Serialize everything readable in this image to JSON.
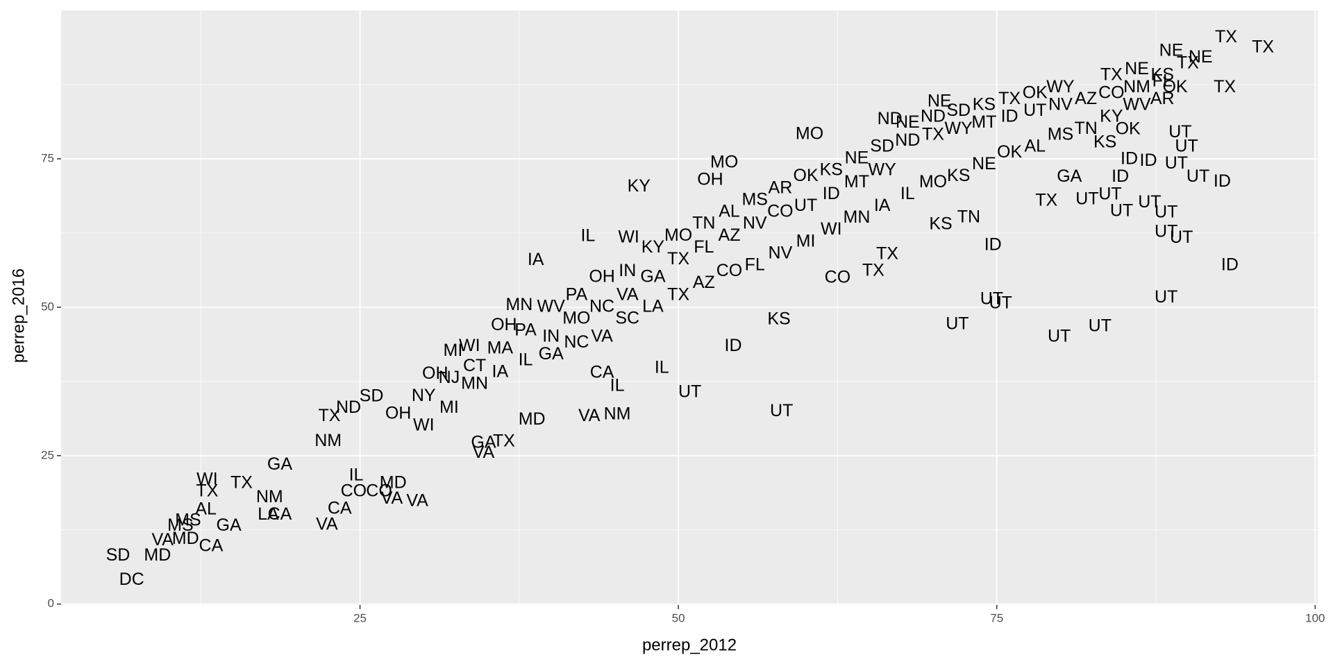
{
  "chart_data": {
    "type": "scatter",
    "x_label": "perrep_2012",
    "y_label": "perrep_2016",
    "color": "#000000",
    "xlim": [
      1.53,
      100.2
    ],
    "ylim": [
      -0.15,
      100
    ],
    "xticks": [
      25,
      50,
      75,
      100
    ],
    "yticks": [
      0,
      25,
      50,
      75
    ],
    "x_minor_ticks": [
      12.5,
      37.5,
      62.5,
      87.5
    ],
    "y_minor_ticks": [
      12.5,
      37.5,
      62.5,
      87.5
    ],
    "grid": true,
    "labels": [
      "DC",
      "SD",
      "MD",
      "CA",
      "VA",
      "MD",
      "MS",
      "GA",
      "MS",
      "AL",
      "TX",
      "WI",
      "TX",
      "NM",
      "CA",
      "LA",
      "VA",
      "CA",
      "VA",
      "VA",
      "CO",
      "SD",
      "ND",
      "TX",
      "NM",
      "UT",
      "UT",
      "UT",
      "UT",
      "UT",
      "UT",
      "UT",
      "UT",
      "ID",
      "ID",
      "UT",
      "UT",
      "UT",
      "UT",
      "UT",
      "TX",
      "UT",
      "UT",
      "ID",
      "UT",
      "ID",
      "UT",
      "UT",
      "UT",
      "ID",
      "ID",
      "TX",
      "TX",
      "TX",
      "NE",
      "KY",
      "IA",
      "MO",
      "MO",
      "KS",
      "ID",
      "IL",
      "CO",
      "TN",
      "KS",
      "GA",
      "OK",
      "KS",
      "NE",
      "ND",
      "OH",
      "OH",
      "WI",
      "MI",
      "CA",
      "OH",
      "MN",
      "GA",
      "TX",
      "VA",
      "GA",
      "MD",
      "CO",
      "IL",
      "NM",
      "IL",
      "WI",
      "TX",
      "TX",
      "VA",
      "MD",
      "IL",
      "WV",
      "PA",
      "OH",
      "IN",
      "KY",
      "MO",
      "TN",
      "AL",
      "MS",
      "AR",
      "OK",
      "KS",
      "NE",
      "SD",
      "ND",
      "TX",
      "WY",
      "MT",
      "ID",
      "UT",
      "NV",
      "AZ",
      "CO",
      "NM",
      "FL",
      "GA",
      "NC",
      "VA",
      "SC",
      "LA",
      "TX",
      "AZ",
      "CO",
      "FL",
      "NV",
      "MI",
      "WI",
      "MN",
      "IA",
      "IL",
      "MO",
      "KS",
      "NE",
      "OK",
      "AL",
      "MS",
      "TN",
      "KY",
      "WV",
      "AR",
      "NY",
      "NJ",
      "CT",
      "MA",
      "PA",
      "OH",
      "WI",
      "MI",
      "MN",
      "IA",
      "IL",
      "IN",
      "MO",
      "NC",
      "VA",
      "GA",
      "TX",
      "FL",
      "AZ",
      "NV",
      "CO",
      "UT",
      "ID",
      "MT",
      "WY",
      "NE",
      "ND",
      "SD",
      "KS",
      "TX",
      "OK",
      "WY",
      "TX",
      "NE",
      "KS",
      "TX",
      "NE",
      "OK"
    ],
    "x": [
      7.07,
      6.0,
      9.1,
      13.3,
      9.5,
      11.3,
      10.9,
      14.7,
      11.5,
      12.9,
      13.0,
      13.0,
      15.7,
      17.9,
      18.7,
      17.8,
      22.4,
      23.4,
      27.5,
      29.5,
      24.5,
      25.9,
      24.1,
      22.6,
      45.2,
      58.1,
      50.9,
      71.9,
      74.6,
      75.3,
      79.9,
      83.1,
      88.3,
      93.3,
      74.7,
      89.5,
      88.3,
      88.3,
      84.8,
      87.0,
      78.9,
      82.1,
      83.9,
      92.7,
      90.8,
      84.7,
      89.1,
      89.9,
      89.4,
      86.9,
      85.4,
      95.9,
      93.0,
      92.9,
      88.7,
      46.9,
      38.8,
      53.6,
      60.3,
      57.9,
      54.3,
      48.7,
      62.5,
      72.8,
      70.6,
      80.7,
      85.3,
      83.5,
      70.5,
      66.6,
      52.5,
      30.9,
      33.6,
      32.3,
      44.0,
      36.3,
      37.5,
      34.7,
      36.3,
      34.7,
      18.7,
      27.6,
      26.5,
      24.7,
      22.5,
      42.9,
      46.1,
      65.3,
      66.4,
      43.0,
      38.5,
      45.2,
      40,
      42,
      44,
      46,
      48,
      50,
      52,
      54,
      56,
      58,
      60,
      62,
      64,
      66,
      68,
      70,
      72,
      74,
      76,
      78,
      80,
      82,
      84,
      86,
      88,
      40,
      42,
      44,
      46,
      48,
      50,
      52,
      54,
      56,
      58,
      60,
      62,
      64,
      66,
      68,
      70,
      72,
      74,
      76,
      78,
      80,
      82,
      84,
      86,
      88,
      30,
      32,
      34,
      36,
      38,
      28,
      30,
      32,
      34,
      36,
      38,
      40,
      42,
      44,
      46,
      48,
      50,
      52,
      54,
      56,
      58,
      60,
      62,
      64,
      66,
      68,
      70,
      72,
      74,
      76,
      78,
      80,
      84,
      86,
      88,
      90,
      91,
      89
    ],
    "values": [
      4.0,
      8.1,
      8.1,
      9.7,
      10.7,
      10.9,
      13.1,
      13.1,
      14.0,
      15.9,
      18.9,
      20.9,
      20.3,
      17.9,
      15.0,
      15.0,
      13.3,
      16.0,
      17.7,
      17.3,
      18.9,
      34.9,
      33.0,
      31.6,
      31.9,
      32.4,
      35.6,
      47.1,
      51.3,
      50.6,
      45.0,
      46.7,
      51.6,
      57.0,
      60.4,
      61.6,
      62.6,
      65.9,
      66.1,
      67.6,
      67.9,
      68.1,
      68.9,
      71.1,
      71.9,
      71.9,
      74.1,
      77.0,
      79.4,
      74.6,
      74.9,
      93.7,
      95.4,
      87.0,
      93.1,
      70.3,
      57.9,
      74.3,
      79.1,
      47.9,
      43.4,
      39.7,
      54.9,
      65.1,
      63.9,
      71.9,
      79.9,
      77.7,
      84.6,
      81.6,
      71.4,
      38.7,
      43.4,
      42.6,
      38.9,
      46.9,
      50.3,
      27.1,
      27.3,
      25.4,
      23.4,
      20.3,
      18.9,
      21.6,
      27.4,
      61.9,
      61.7,
      56.1,
      58.9,
      31.6,
      31.0,
      36.7,
      50,
      52,
      55,
      56,
      60,
      62,
      64,
      66,
      68,
      70,
      72,
      73,
      75,
      77,
      78,
      79,
      80,
      81,
      82,
      83,
      84,
      85,
      86,
      87,
      88,
      42,
      44,
      45,
      48,
      50,
      52,
      54,
      56,
      57,
      59,
      61,
      63,
      65,
      67,
      69,
      71,
      72,
      74,
      76,
      77,
      79,
      80,
      82,
      84,
      85,
      35,
      38,
      40,
      43,
      46,
      32,
      30,
      33,
      37,
      39,
      41,
      45,
      48,
      50,
      52,
      55,
      58,
      60,
      62,
      64,
      66,
      67,
      69,
      71,
      73,
      81,
      82,
      83,
      84,
      85,
      86,
      87,
      89,
      90,
      89,
      91,
      92,
      87
    ]
  }
}
